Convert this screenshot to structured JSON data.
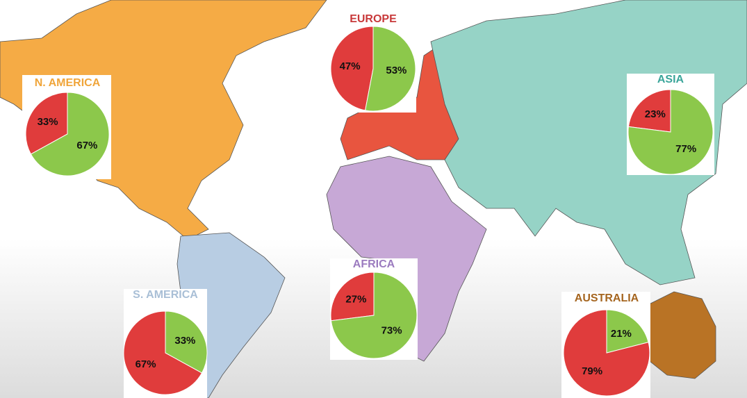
{
  "chart_data": [
    {
      "type": "pie",
      "title": "N. AMERICA",
      "title_color": "#f0a53a",
      "values": [
        33,
        67
      ],
      "value_labels": [
        "33%",
        "67%"
      ],
      "colors": [
        "#e03c3c",
        "#8cc84b"
      ]
    },
    {
      "type": "pie",
      "title": "EUROPE",
      "title_color": "#c8393a",
      "values": [
        47,
        53
      ],
      "value_labels": [
        "47%",
        "53%"
      ],
      "colors": [
        "#e03c3c",
        "#8cc84b"
      ]
    },
    {
      "type": "pie",
      "title": "ASIA",
      "title_color": "#3aa59a",
      "values": [
        23,
        77
      ],
      "value_labels": [
        "23%",
        "77%"
      ],
      "colors": [
        "#e03c3c",
        "#8cc84b"
      ]
    },
    {
      "type": "pie",
      "title": "S. AMERICA",
      "title_color": "#a9bfd6",
      "values": [
        67,
        33
      ],
      "value_labels": [
        "67%",
        "33%"
      ],
      "colors": [
        "#e03c3c",
        "#8cc84b"
      ]
    },
    {
      "type": "pie",
      "title": "AFRICA",
      "title_color": "#9b7bbf",
      "values": [
        27,
        73
      ],
      "value_labels": [
        "27%",
        "73%"
      ],
      "colors": [
        "#e03c3c",
        "#8cc84b"
      ]
    },
    {
      "type": "pie",
      "title": "AUSTRALIA",
      "title_color": "#a5651f",
      "values": [
        79,
        21
      ],
      "value_labels": [
        "79%",
        "21%"
      ],
      "colors": [
        "#e03c3c",
        "#8cc84b"
      ]
    }
  ]
}
